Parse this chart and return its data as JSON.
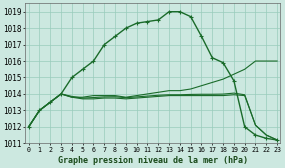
{
  "hours": [
    0,
    1,
    2,
    3,
    4,
    5,
    6,
    7,
    8,
    9,
    10,
    11,
    12,
    13,
    14,
    15,
    16,
    17,
    18,
    19,
    20,
    21,
    22,
    23
  ],
  "main": [
    1012,
    1013,
    1013.5,
    1014,
    1015,
    1015.5,
    1016,
    1017,
    1017.5,
    1018,
    1018.3,
    1018.4,
    1018.5,
    1019,
    1019,
    1018.7,
    1017.5,
    1016.2,
    1015.9,
    1014.8,
    1012,
    1011.5,
    1011.3,
    1011.2
  ],
  "upper": [
    1012,
    1013,
    1013.5,
    1014,
    1013.8,
    1013.8,
    1013.9,
    1013.9,
    1013.9,
    1013.8,
    1013.9,
    1014.0,
    1014.1,
    1014.2,
    1014.2,
    1014.3,
    1014.5,
    1014.7,
    1014.9,
    1015.2,
    1015.5,
    1016.0,
    1016.0,
    1016.0
  ],
  "lower1": [
    1012,
    1013,
    1013.5,
    1014,
    1013.8,
    1013.7,
    1013.7,
    1013.75,
    1013.75,
    1013.7,
    1013.75,
    1013.8,
    1013.85,
    1013.9,
    1013.9,
    1013.9,
    1013.9,
    1013.9,
    1013.9,
    1013.95,
    1013.9,
    1012.1,
    1011.5,
    1011.2
  ],
  "lower2": [
    1012,
    1013,
    1013.5,
    1014,
    1013.85,
    1013.75,
    1013.78,
    1013.82,
    1013.83,
    1013.77,
    1013.82,
    1013.87,
    1013.92,
    1013.95,
    1013.95,
    1013.97,
    1013.98,
    1013.98,
    1013.99,
    1014.05,
    1013.95,
    1012.1,
    1011.5,
    1011.2
  ],
  "ylim": [
    1011,
    1019.5
  ],
  "yticks": [
    1011,
    1012,
    1013,
    1014,
    1015,
    1016,
    1017,
    1018,
    1019
  ],
  "bg_color": "#cce8e0",
  "grid_color": "#99ccbb",
  "line_color": "#1a6b2a",
  "xlabel": "Graphe pression niveau de la mer (hPa)"
}
